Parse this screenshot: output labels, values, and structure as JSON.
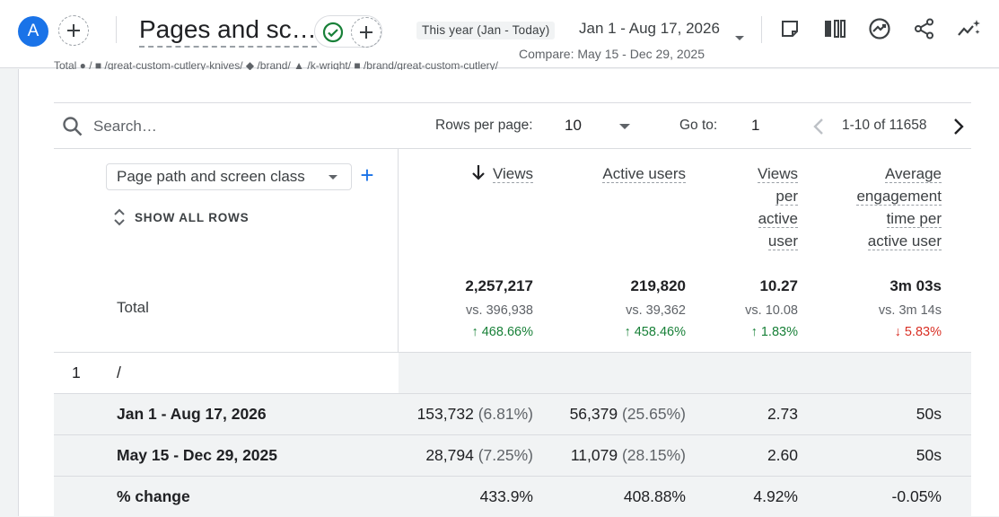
{
  "header": {
    "avatar_letter": "A",
    "page_title": "Pages and sc…",
    "date_chip": "This year (Jan - Today)",
    "date_range": "Jan 1 - Aug 17, 2026",
    "compare": "Compare: May 15 - Dec 29, 2025",
    "legend_partial": "Total   ● /   ■ /great-custom-cutlery-knives/   ◆ /brand/   ▲ /k-wright/   ■ /brand/great-custom-cutlery/"
  },
  "toolbar": {
    "icons": [
      "add-comparison-icon",
      "customize-report-icon",
      "compare-columns-icon",
      "insights-icon",
      "share-icon",
      "sparkle-insights-icon"
    ]
  },
  "search": {
    "placeholder": "Search…",
    "rows_per_page_label": "Rows per page:",
    "rows_per_page_value": "10",
    "goto_label": "Go to:",
    "goto_value": "1",
    "pagination": "1-10 of 11658"
  },
  "table": {
    "dimension": "Page path and screen class",
    "show_all_rows": "SHOW ALL ROWS",
    "columns": [
      {
        "lines": [
          "Views"
        ]
      },
      {
        "lines": [
          "Active users"
        ]
      },
      {
        "lines": [
          "Views",
          "per",
          "active",
          "user"
        ]
      },
      {
        "lines": [
          "Average",
          "engagement",
          "time per",
          "active user"
        ]
      }
    ],
    "total_label": "Total",
    "totals": [
      {
        "value": "2,257,217",
        "vs": "vs. 396,938",
        "change": "↑ 468.66%",
        "dir": "up"
      },
      {
        "value": "219,820",
        "vs": "vs. 39,362",
        "change": "↑ 458.46%",
        "dir": "up"
      },
      {
        "value": "10.27",
        "vs": "vs. 10.08",
        "change": "↑ 1.83%",
        "dir": "up"
      },
      {
        "value": "3m 03s",
        "vs": "vs. 3m 14s",
        "change": "↓ 5.83%",
        "dir": "down"
      }
    ],
    "rows": [
      {
        "index": "1",
        "path": "/"
      },
      {
        "label": "Jan 1 - Aug 17, 2026",
        "views": "153,732",
        "views_pct": "(6.81%)",
        "users": "56,379",
        "users_pct": "(25.65%)",
        "vpu": "2.73",
        "aet": "50s"
      },
      {
        "label": "May 15 - Dec 29, 2025",
        "views": "28,794",
        "views_pct": "(7.25%)",
        "users": "11,079",
        "users_pct": "(28.15%)",
        "vpu": "2.60",
        "aet": "50s"
      },
      {
        "label": "% change",
        "views": "433.9%",
        "users": "408.88%",
        "vpu": "4.92%",
        "aet": "-0.05%"
      }
    ]
  },
  "colors": {
    "accent": "#1a73e8",
    "positive": "#188038",
    "negative": "#d93025"
  }
}
